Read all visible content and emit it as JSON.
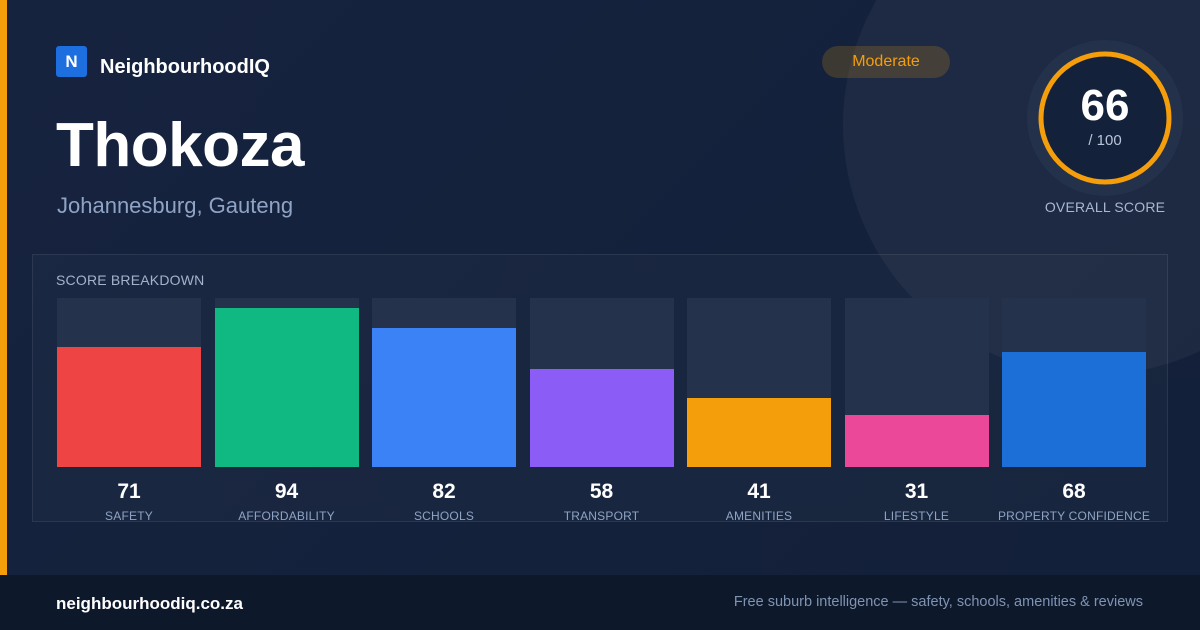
{
  "brand": {
    "logo_letter": "N",
    "name": "NeighbourhoodIQ"
  },
  "suburb": {
    "name": "Thokoza",
    "location": "Johannesburg, Gauteng"
  },
  "badge": {
    "label": "Moderate",
    "color": "#f59e0b"
  },
  "overall": {
    "value": "66",
    "max_label": "/ 100",
    "label": "OVERALL SCORE",
    "score_fraction": 0.66,
    "color": "#f59e0b"
  },
  "breakdown": {
    "title": "SCORE BREAKDOWN",
    "items": [
      {
        "label": "SAFETY",
        "value": 71,
        "color": "#ef4444"
      },
      {
        "label": "AFFORDABILITY",
        "value": 94,
        "color": "#10b981"
      },
      {
        "label": "SCHOOLS",
        "value": 82,
        "color": "#3b82f6"
      },
      {
        "label": "TRANSPORT",
        "value": 58,
        "color": "#8b5cf6"
      },
      {
        "label": "AMENITIES",
        "value": 41,
        "color": "#f59e0b"
      },
      {
        "label": "LIFESTYLE",
        "value": 31,
        "color": "#ec4899"
      },
      {
        "label": "PROPERTY CONFIDENCE",
        "value": 68,
        "color": "#1d6fd8"
      }
    ]
  },
  "footer": {
    "domain": "neighbourhoodiq.co.za",
    "tagline": "Free suburb intelligence — safety, schools, amenities & reviews"
  },
  "chart_data": {
    "type": "bar",
    "title": "SCORE BREAKDOWN",
    "categories": [
      "SAFETY",
      "AFFORDABILITY",
      "SCHOOLS",
      "TRANSPORT",
      "AMENITIES",
      "LIFESTYLE",
      "PROPERTY CONFIDENCE"
    ],
    "values": [
      71,
      94,
      82,
      58,
      41,
      31,
      68
    ],
    "ylim": [
      0,
      100
    ]
  }
}
